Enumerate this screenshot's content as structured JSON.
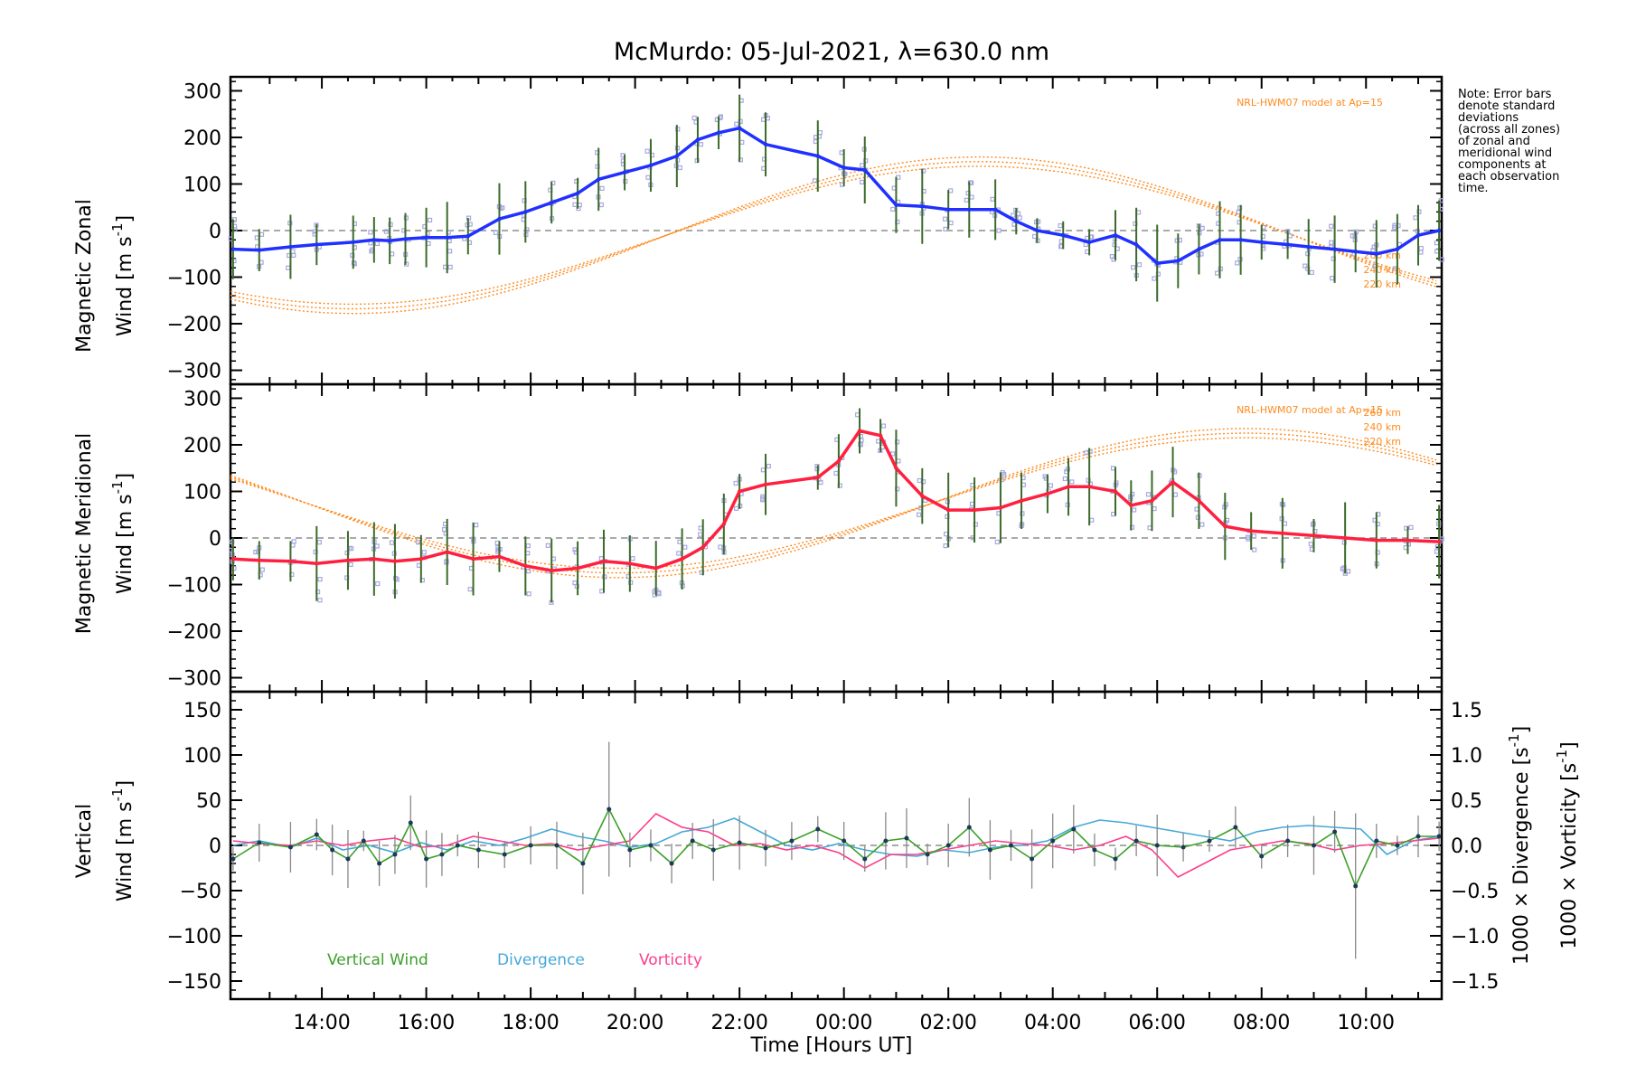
{
  "chart_data": {
    "title": "McMurdo: 05-Jul-2021, λ=630.0 nm",
    "xlabel": "Time [Hours UT]",
    "x_unit": "hours since 00:00 UT on 05-Jul-2021",
    "x_range": [
      12.25,
      35.45
    ],
    "x_ticks": [
      14,
      16,
      18,
      20,
      22,
      24,
      26,
      28,
      30,
      32,
      34
    ],
    "x_tick_labels": [
      "14:00",
      "16:00",
      "18:00",
      "20:00",
      "22:00",
      "00:00",
      "02:00",
      "04:00",
      "06:00",
      "08:00",
      "10:00"
    ],
    "note": [
      "Note: Error bars",
      "denote standard",
      "deviations",
      "(across all zones)",
      "of zonal and",
      "meridional wind",
      "components at",
      "each observation",
      "time."
    ],
    "colors": {
      "zonal": "#2030ff",
      "meridional": "#ff2040",
      "vertical": "#3aa028",
      "divergence": "#45a8d8",
      "vorticity": "#ff3c8c",
      "model": "#ff8a1e",
      "zones": "#a8a8e0",
      "errbar": "#3b6b2a"
    },
    "panels": [
      {
        "type": "line",
        "ylabel_line1": "Magnetic Zonal",
        "ylabel_line2": "Wind",
        "yunit_prefix": "[m s",
        "yunit_exp": "-1",
        "yunit_suffix": "]",
        "ylim": [
          -330,
          330
        ],
        "y_ticks": [
          -300,
          -200,
          -100,
          0,
          100,
          200,
          300
        ],
        "y_tick_labels": [
          "−300",
          "−200",
          "−100",
          "0",
          "100",
          "200",
          "300"
        ],
        "model_label": "NRL-HWM07 model at Ap=15",
        "model_alt_labels": [
          "260 km",
          "240 km",
          "220 km"
        ],
        "series": {
          "name": "Magnetic Zonal Wind",
          "x": [
            12.3,
            12.8,
            13.4,
            13.9,
            14.6,
            15.0,
            15.3,
            15.6,
            16.0,
            16.4,
            16.8,
            17.4,
            17.9,
            18.4,
            18.9,
            19.3,
            19.8,
            20.3,
            20.8,
            21.2,
            21.6,
            22.0,
            22.5,
            23.5,
            24.0,
            24.4,
            25.0,
            25.5,
            26.0,
            26.4,
            26.9,
            27.3,
            27.7,
            28.2,
            28.7,
            29.2,
            29.6,
            30.0,
            30.4,
            30.8,
            31.2,
            31.6,
            32.0,
            32.5,
            32.9,
            33.4,
            33.8,
            34.2,
            34.6,
            35.0,
            35.4
          ],
          "y": [
            -40,
            -42,
            -35,
            -30,
            -25,
            -20,
            -22,
            -18,
            -15,
            -15,
            -12,
            25,
            40,
            60,
            80,
            110,
            125,
            140,
            160,
            195,
            210,
            220,
            185,
            160,
            135,
            130,
            55,
            52,
            45,
            45,
            45,
            20,
            0,
            -10,
            -25,
            -10,
            -30,
            -70,
            -65,
            -40,
            -20,
            -20,
            -25,
            -30,
            -35,
            -40,
            -45,
            -50,
            -40,
            -10,
            0
          ]
        },
        "model_curves": [
          {
            "alt": "220 km",
            "amp": 148,
            "off": -10
          },
          {
            "alt": "240 km",
            "amp": 158,
            "off": -10
          },
          {
            "alt": "260 km",
            "amp": 168,
            "off": -10
          }
        ],
        "model_phase_hours": 2.6
      },
      {
        "type": "line",
        "ylabel_line1": "Magnetic Meridional",
        "ylabel_line2": "Wind",
        "yunit_prefix": "[m s",
        "yunit_exp": "-1",
        "yunit_suffix": "]",
        "ylim": [
          -330,
          330
        ],
        "y_ticks": [
          -300,
          -200,
          -100,
          0,
          100,
          200,
          300
        ],
        "y_tick_labels": [
          "−300",
          "−200",
          "−100",
          "0",
          "100",
          "200",
          "300"
        ],
        "model_label": "NRL-HWM07 model at Ap=15",
        "model_alt_labels": [
          "260 km",
          "240 km",
          "220 km"
        ],
        "series": {
          "name": "Magnetic Meridional Wind",
          "x": [
            12.3,
            12.8,
            13.4,
            13.9,
            14.5,
            15.0,
            15.4,
            15.9,
            16.4,
            16.9,
            17.4,
            17.9,
            18.4,
            18.9,
            19.4,
            19.9,
            20.4,
            20.9,
            21.3,
            21.7,
            22.0,
            22.5,
            23.5,
            23.9,
            24.3,
            24.7,
            25.0,
            25.5,
            26.0,
            26.5,
            27.0,
            27.4,
            27.9,
            28.3,
            28.7,
            29.2,
            29.5,
            29.9,
            30.3,
            30.8,
            31.3,
            31.8,
            32.4,
            33.0,
            33.6,
            34.2,
            34.8,
            35.4
          ],
          "y": [
            -45,
            -48,
            -50,
            -55,
            -48,
            -45,
            -50,
            -45,
            -30,
            -45,
            -40,
            -60,
            -70,
            -65,
            -50,
            -55,
            -65,
            -45,
            -20,
            30,
            100,
            115,
            130,
            165,
            230,
            220,
            150,
            90,
            60,
            60,
            65,
            80,
            95,
            110,
            110,
            100,
            70,
            80,
            120,
            80,
            25,
            15,
            10,
            5,
            0,
            -5,
            -5,
            -8
          ]
        },
        "model_curves": [
          {
            "alt": "220 km",
            "amp": 140,
            "off": 75
          },
          {
            "alt": "240 km",
            "amp": 150,
            "off": 75
          },
          {
            "alt": "260 km",
            "amp": 160,
            "off": 75
          }
        ],
        "model_phase_hours": 7.7
      },
      {
        "type": "line",
        "ylabel_line1": "Vertical",
        "ylabel_line2": "Wind",
        "yunit_prefix": "[m s",
        "yunit_exp": "-1",
        "yunit_suffix": "]",
        "ylim": [
          -170,
          170
        ],
        "y_ticks": [
          -150,
          -100,
          -50,
          0,
          50,
          100,
          150
        ],
        "y_tick_labels": [
          "−150",
          "−100",
          "−50",
          "0",
          "50",
          "100",
          "150"
        ],
        "right_ylim": [
          -1.7,
          1.7
        ],
        "right_y_ticks": [
          -1.5,
          -1.0,
          -0.5,
          0.0,
          0.5,
          1.0,
          1.5
        ],
        "right_y_tick_labels": [
          "−1.5",
          "−1.0",
          "−0.5",
          "0.0",
          "0.5",
          "1.0",
          "1.5"
        ],
        "right_label_divergence": "1000 × Divergence [s",
        "right_label_vorticity": "1000 × Vorticity [s",
        "right_unit_exp": "-1",
        "right_unit_suffix": "]",
        "legend": [
          "Vertical Wind",
          "Divergence",
          "Vorticity"
        ],
        "series": [
          {
            "name": "Vertical Wind",
            "x": [
              12.3,
              12.8,
              13.4,
              13.9,
              14.2,
              14.5,
              14.8,
              15.1,
              15.4,
              15.7,
              16.0,
              16.3,
              16.6,
              17.0,
              17.5,
              18.0,
              18.5,
              19.0,
              19.5,
              19.9,
              20.3,
              20.7,
              21.1,
              21.5,
              22.0,
              22.5,
              23.0,
              23.5,
              24.0,
              24.4,
              24.8,
              25.2,
              25.6,
              26.0,
              26.4,
              26.8,
              27.2,
              27.6,
              28.0,
              28.4,
              28.8,
              29.2,
              29.6,
              30.0,
              30.5,
              31.0,
              31.5,
              32.0,
              32.5,
              33.0,
              33.4,
              33.8,
              34.2,
              34.6,
              35.0,
              35.4
            ],
            "y": [
              -15,
              3,
              -2,
              12,
              -5,
              -15,
              5,
              -20,
              -10,
              25,
              -15,
              -10,
              0,
              -5,
              -10,
              0,
              0,
              -20,
              40,
              -5,
              0,
              -20,
              5,
              -5,
              3,
              -3,
              5,
              18,
              5,
              -15,
              5,
              8,
              -10,
              0,
              20,
              -5,
              0,
              -15,
              5,
              18,
              -5,
              -15,
              5,
              0,
              -2,
              5,
              20,
              -12,
              5,
              0,
              15,
              -45,
              5,
              0,
              10,
              10
            ]
          },
          {
            "name": "Divergence",
            "x": [
              12.3,
              12.8,
              13.4,
              13.9,
              14.4,
              14.9,
              15.4,
              15.9,
              16.4,
              16.9,
              17.4,
              17.9,
              18.4,
              18.9,
              19.4,
              19.9,
              20.4,
              20.9,
              21.4,
              21.9,
              22.4,
              22.9,
              23.4,
              23.9,
              24.4,
              24.9,
              25.4,
              25.9,
              26.4,
              26.9,
              27.4,
              27.9,
              28.4,
              28.9,
              29.4,
              29.9,
              30.4,
              30.9,
              31.4,
              31.9,
              32.4,
              32.9,
              33.4,
              33.9,
              34.4,
              34.9,
              35.4
            ],
            "y": [
              0.0,
              0.05,
              -0.02,
              0.08,
              -0.05,
              0.0,
              -0.08,
              0.03,
              -0.05,
              0.05,
              0.0,
              0.08,
              0.18,
              0.1,
              0.05,
              -0.02,
              0.02,
              0.15,
              0.2,
              0.3,
              0.15,
              0.0,
              -0.05,
              0.02,
              -0.05,
              -0.1,
              -0.12,
              -0.05,
              -0.08,
              -0.02,
              0.0,
              0.05,
              0.2,
              0.28,
              0.25,
              0.2,
              0.15,
              0.1,
              0.05,
              0.15,
              0.2,
              0.22,
              0.2,
              0.18,
              -0.1,
              0.05,
              0.1
            ]
          },
          {
            "name": "Vorticity",
            "x": [
              12.3,
              12.8,
              13.4,
              13.9,
              14.4,
              14.9,
              15.4,
              15.9,
              16.4,
              16.9,
              17.4,
              17.9,
              18.4,
              18.9,
              19.4,
              19.9,
              20.4,
              20.9,
              21.4,
              21.9,
              22.4,
              22.9,
              23.4,
              23.9,
              24.4,
              24.9,
              25.4,
              25.9,
              26.4,
              26.9,
              27.4,
              27.9,
              28.4,
              28.9,
              29.4,
              29.9,
              30.4,
              30.9,
              31.4,
              31.9,
              32.4,
              32.9,
              33.4,
              33.9,
              34.4,
              34.9,
              35.4
            ],
            "y": [
              0.05,
              0.02,
              0.0,
              0.05,
              0.0,
              0.05,
              0.08,
              -0.02,
              0.0,
              0.1,
              0.05,
              0.0,
              0.02,
              -0.05,
              0.0,
              0.05,
              0.35,
              0.2,
              0.15,
              0.0,
              0.02,
              -0.05,
              0.0,
              -0.08,
              -0.25,
              -0.1,
              -0.1,
              -0.05,
              0.0,
              0.05,
              0.02,
              0.0,
              -0.05,
              0.0,
              0.1,
              -0.05,
              -0.35,
              -0.2,
              -0.05,
              0.0,
              0.05,
              0.02,
              -0.05,
              0.0,
              0.02,
              0.05,
              0.08
            ]
          }
        ]
      }
    ]
  }
}
